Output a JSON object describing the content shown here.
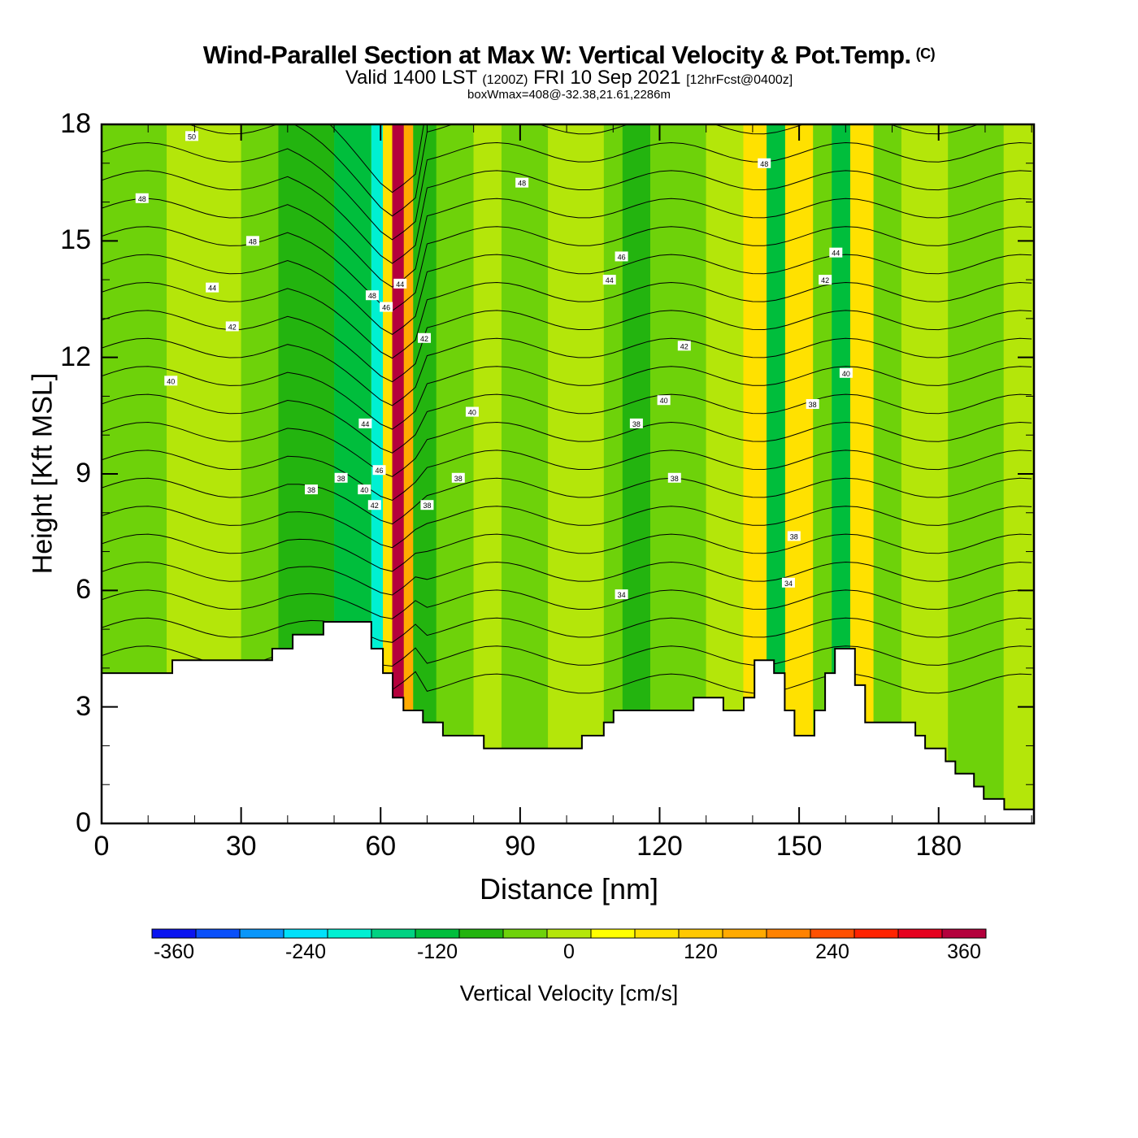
{
  "header": {
    "title": "Wind-Parallel Section at Max W: Vertical Velocity & Pot.Temp.",
    "copyright": "(C)",
    "valid_prefix": "Valid 1400 LST",
    "valid_utc": "(1200Z)",
    "valid_date": "FRI 10 Sep 2021",
    "forecast": "[12hrFcst@0400z]",
    "subtitle": "boxWmax=408@-32.38,21.61,2286m"
  },
  "chart_data": {
    "type": "heatmap",
    "title": "Wind-Parallel Section at Max W: Vertical Velocity & Pot.Temp.",
    "xlabel": "Distance [nm]",
    "ylabel": "Height [Kft MSL]",
    "xlim": [
      0,
      200.5
    ],
    "ylim": [
      0,
      18
    ],
    "x_ticks": [
      "0",
      "30",
      "60",
      "90",
      "120",
      "150",
      "180"
    ],
    "x_tick_values": [
      0,
      30,
      60,
      90,
      120,
      150,
      180
    ],
    "y_ticks": [
      "0",
      "3",
      "6",
      "9",
      "12",
      "15",
      "18"
    ],
    "y_tick_values": [
      0,
      3,
      6,
      9,
      12,
      15,
      18
    ],
    "colorbar": {
      "label": "Vertical Velocity [cm/s]",
      "tick_labels": [
        "-360",
        "-240",
        "-120",
        "0",
        "120",
        "240",
        "360"
      ],
      "tick_values": [
        -360,
        -240,
        -120,
        0,
        120,
        240,
        360
      ],
      "colors": [
        "#0a14f0",
        "#0a50fa",
        "#0a96fa",
        "#00e1fa",
        "#00f0d2",
        "#00d282",
        "#00be3c",
        "#23b40f",
        "#6ed20a",
        "#b4e60a",
        "#ffff00",
        "#ffe100",
        "#ffc800",
        "#ffaa00",
        "#ff8200",
        "#ff5000",
        "#ff2300",
        "#e6001e",
        "#b4003c"
      ]
    },
    "terrain_kft": {
      "distance_nm": [
        0,
        15.2,
        15.2,
        36.7,
        36.7,
        41.1,
        41.1,
        47.7,
        47.7,
        58.0,
        58.0,
        60.5,
        60.5,
        62.6,
        62.6,
        64.9,
        64.9,
        69.1,
        69.1,
        73.4,
        73.4,
        82.2,
        82.2,
        103.3,
        103.3,
        108.0,
        108.0,
        110.1,
        110.1,
        127.3,
        127.3,
        133.7,
        133.7,
        138.1,
        138.1,
        140.4,
        140.4,
        144.6,
        144.6,
        146.9,
        146.9,
        149.0,
        149.0,
        153.3,
        153.3,
        155.6,
        155.6,
        157.7,
        157.7,
        162.0,
        162.0,
        164.2,
        164.2,
        175.0,
        175.0,
        177.1,
        177.1,
        181.5,
        181.5,
        183.6,
        183.6,
        187.6,
        187.6,
        189.7,
        189.7,
        194.1,
        194.1,
        200.5
      ],
      "height_kft": [
        3.87,
        3.87,
        4.2,
        4.2,
        4.5,
        4.5,
        4.86,
        4.86,
        5.19,
        5.19,
        4.5,
        4.5,
        3.87,
        3.87,
        3.24,
        3.24,
        2.91,
        2.91,
        2.6,
        2.6,
        2.26,
        2.26,
        1.93,
        1.93,
        2.26,
        2.26,
        2.6,
        2.6,
        2.91,
        2.91,
        3.24,
        3.24,
        2.91,
        2.91,
        3.24,
        3.24,
        4.2,
        4.2,
        3.87,
        3.87,
        2.91,
        2.91,
        2.26,
        2.26,
        2.91,
        2.91,
        3.87,
        3.87,
        4.5,
        4.5,
        3.56,
        3.56,
        2.6,
        2.6,
        2.26,
        2.26,
        1.93,
        1.93,
        1.6,
        1.6,
        1.28,
        1.28,
        0.95,
        0.95,
        0.63,
        0.63,
        0.36,
        0.36
      ]
    },
    "velocity_bands": [
      {
        "x0": 0,
        "x1": 14,
        "value": -50
      },
      {
        "x0": 14,
        "x1": 30,
        "value": 10
      },
      {
        "x0": 30,
        "x1": 38,
        "value": -50
      },
      {
        "x0": 38,
        "x1": 50,
        "value": -80
      },
      {
        "x0": 50,
        "x1": 58,
        "value": -110
      },
      {
        "x0": 58,
        "x1": 60.5,
        "value": -200
      },
      {
        "x0": 60.5,
        "x1": 62.5,
        "value": 60
      },
      {
        "x0": 62.5,
        "x1": 65,
        "value": 350
      },
      {
        "x0": 65,
        "x1": 67,
        "value": 150
      },
      {
        "x0": 67,
        "x1": 72,
        "value": -80
      },
      {
        "x0": 72,
        "x1": 80,
        "value": -40
      },
      {
        "x0": 80,
        "x1": 86,
        "value": 10
      },
      {
        "x0": 86,
        "x1": 96,
        "value": -40
      },
      {
        "x0": 96,
        "x1": 108,
        "value": 10
      },
      {
        "x0": 108,
        "x1": 112,
        "value": -50
      },
      {
        "x0": 112,
        "x1": 118,
        "value": -90
      },
      {
        "x0": 118,
        "x1": 130,
        "value": -40
      },
      {
        "x0": 130,
        "x1": 138,
        "value": 10
      },
      {
        "x0": 138,
        "x1": 143,
        "value": 60
      },
      {
        "x0": 143,
        "x1": 147,
        "value": -130
      },
      {
        "x0": 147,
        "x1": 153,
        "value": 90
      },
      {
        "x0": 153,
        "x1": 157,
        "value": -40
      },
      {
        "x0": 157,
        "x1": 161,
        "value": -120
      },
      {
        "x0": 161,
        "x1": 166,
        "value": 70
      },
      {
        "x0": 166,
        "x1": 172,
        "value": -40
      },
      {
        "x0": 172,
        "x1": 182,
        "value": 10
      },
      {
        "x0": 182,
        "x1": 194,
        "value": -40
      },
      {
        "x0": 194,
        "x1": 200.5,
        "value": 10
      }
    ],
    "contour_interval_K": 1,
    "contour_labels": [
      {
        "text": "50",
        "x": 19.4,
        "y": 17.7
      },
      {
        "text": "48",
        "x": 8.7,
        "y": 16.1
      },
      {
        "text": "48",
        "x": 32.5,
        "y": 15.0
      },
      {
        "text": "44",
        "x": 23.8,
        "y": 13.8
      },
      {
        "text": "42",
        "x": 28.1,
        "y": 12.8
      },
      {
        "text": "40",
        "x": 14.9,
        "y": 11.4
      },
      {
        "text": "48",
        "x": 58.2,
        "y": 13.6
      },
      {
        "text": "46",
        "x": 61.2,
        "y": 13.3
      },
      {
        "text": "44",
        "x": 64.2,
        "y": 13.9
      },
      {
        "text": "42",
        "x": 69.4,
        "y": 12.5
      },
      {
        "text": "44",
        "x": 56.7,
        "y": 10.3
      },
      {
        "text": "46",
        "x": 59.7,
        "y": 9.1
      },
      {
        "text": "38",
        "x": 51.5,
        "y": 8.9
      },
      {
        "text": "38",
        "x": 45.1,
        "y": 8.6
      },
      {
        "text": "40",
        "x": 56.5,
        "y": 8.6
      },
      {
        "text": "42",
        "x": 58.7,
        "y": 8.2
      },
      {
        "text": "38",
        "x": 70.0,
        "y": 8.2
      },
      {
        "text": "40",
        "x": 79.7,
        "y": 10.6
      },
      {
        "text": "38",
        "x": 76.7,
        "y": 8.9
      },
      {
        "text": "48",
        "x": 90.4,
        "y": 16.5
      },
      {
        "text": "46",
        "x": 111.8,
        "y": 14.6
      },
      {
        "text": "44",
        "x": 109.2,
        "y": 14.0
      },
      {
        "text": "42",
        "x": 125.3,
        "y": 12.3
      },
      {
        "text": "40",
        "x": 120.9,
        "y": 10.9
      },
      {
        "text": "38",
        "x": 115.0,
        "y": 10.3
      },
      {
        "text": "38",
        "x": 123.2,
        "y": 8.9
      },
      {
        "text": "34",
        "x": 111.8,
        "y": 5.9
      },
      {
        "text": "48",
        "x": 142.5,
        "y": 17.0
      },
      {
        "text": "44",
        "x": 157.9,
        "y": 14.7
      },
      {
        "text": "42",
        "x": 155.6,
        "y": 14.0
      },
      {
        "text": "40",
        "x": 160.1,
        "y": 11.6
      },
      {
        "text": "38",
        "x": 152.9,
        "y": 10.8
      },
      {
        "text": "38",
        "x": 148.9,
        "y": 7.4
      },
      {
        "text": "34",
        "x": 147.7,
        "y": 6.2
      }
    ]
  }
}
